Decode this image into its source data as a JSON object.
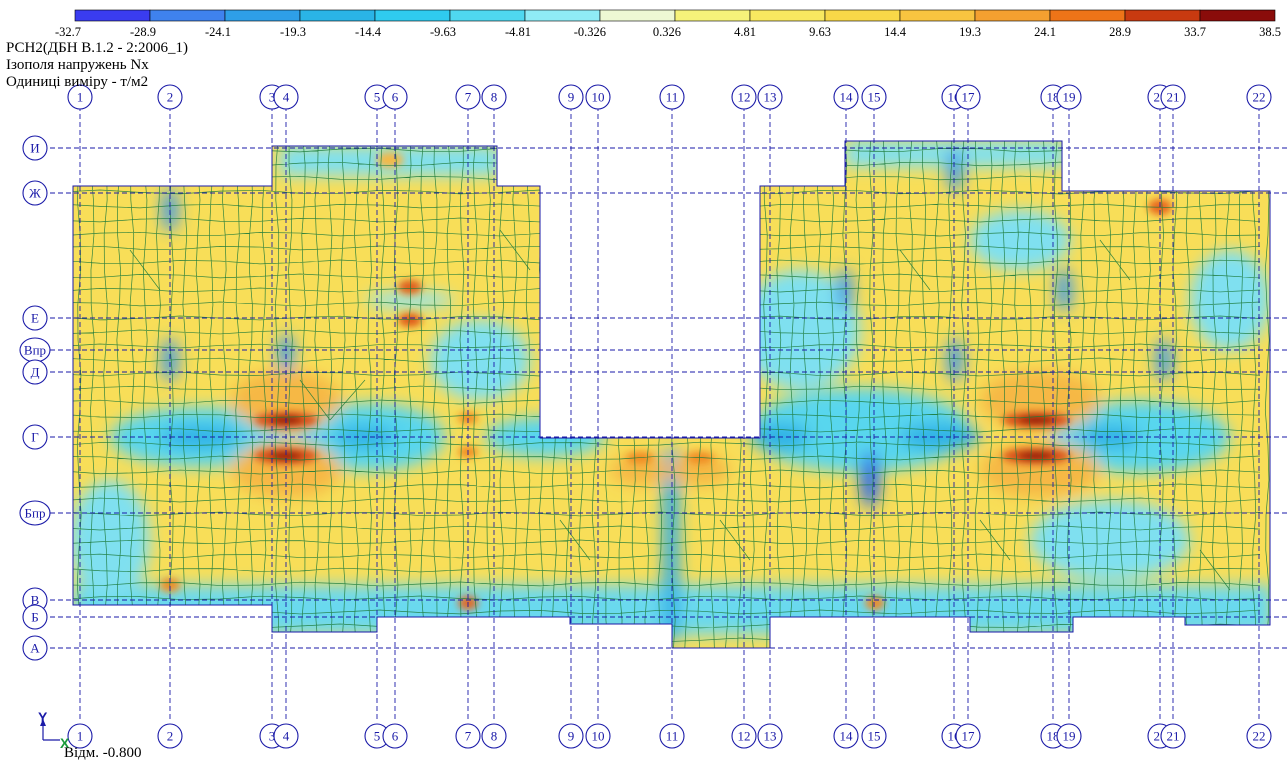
{
  "legend": {
    "values": [
      "-32.7",
      "-28.9",
      "-24.1",
      "-19.3",
      "-14.4",
      "-9.63",
      "-4.81",
      "-0.326",
      "0.326",
      "4.81",
      "9.63",
      "14.4",
      "19.3",
      "24.1",
      "28.9",
      "33.7",
      "38.5"
    ],
    "colors": [
      "#3a3cf0",
      "#3f82ee",
      "#2e9fe8",
      "#2ab4e6",
      "#2fcbef",
      "#4fd8f0",
      "#8fecf6",
      "#eef8d4",
      "#f6f27a",
      "#f8e860",
      "#f8d848",
      "#f8c440",
      "#f4a030",
      "#ee7418",
      "#c83a10",
      "#8a0c0a"
    ]
  },
  "info": {
    "line1": "РСН2(ДБН В.1.2 - 2:2006_1)",
    "line2": "Ізополя напружень Nx",
    "line3": "Одиниці виміру - т/м2"
  },
  "grid": {
    "columns": [
      "1",
      "2",
      "3",
      "4",
      "5",
      "6",
      "7",
      "8",
      "9",
      "10",
      "11",
      "12",
      "13",
      "14",
      "15",
      "16",
      "17",
      "18",
      "19",
      "20",
      "21",
      "22"
    ],
    "column_labels_top": [
      "1",
      "2",
      "3",
      "4",
      "5",
      "6",
      "7",
      "8",
      "9",
      "10",
      "11",
      "12",
      "13",
      "14",
      "15",
      "16",
      "17",
      "18",
      "19",
      "20",
      "21",
      "22"
    ],
    "rows": [
      "И",
      "Ж",
      "Е",
      "Впр",
      "Д",
      "Г",
      "Бпр",
      "В",
      "Б",
      "А"
    ]
  },
  "axes_icon": {
    "y": "Y",
    "x": "X"
  },
  "level": "Відм. -0.800"
}
